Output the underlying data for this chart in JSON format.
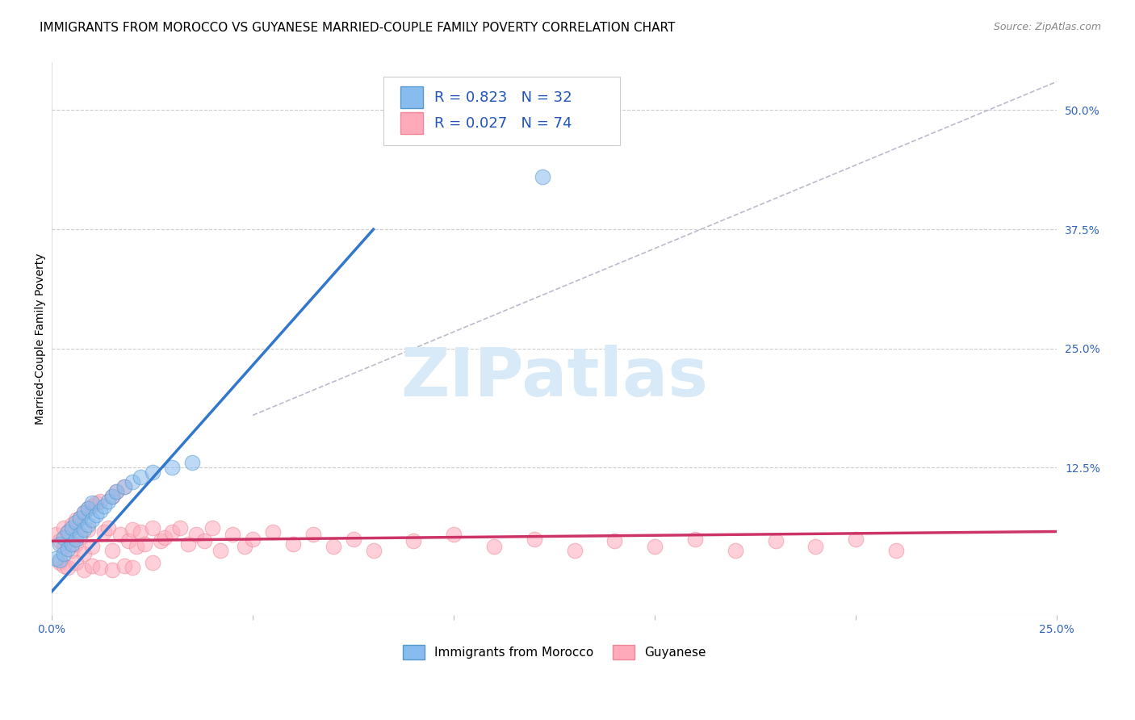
{
  "title": "IMMIGRANTS FROM MOROCCO VS GUYANESE MARRIED-COUPLE FAMILY POVERTY CORRELATION CHART",
  "source": "Source: ZipAtlas.com",
  "ylabel": "Married-Couple Family Poverty",
  "xlim": [
    0.0,
    0.25
  ],
  "ylim": [
    -0.03,
    0.55
  ],
  "xticks": [
    0.0,
    0.05,
    0.1,
    0.15,
    0.2,
    0.25
  ],
  "xtick_labels": [
    "0.0%",
    "",
    "",
    "",
    "",
    "25.0%"
  ],
  "ytick_labels_right": [
    "12.5%",
    "25.0%",
    "37.5%",
    "50.0%"
  ],
  "yticks_right": [
    0.125,
    0.25,
    0.375,
    0.5
  ],
  "morocco_color": "#88bbee",
  "morocco_edge_color": "#5599cc",
  "guyanese_color": "#ffaabb",
  "guyanese_edge_color": "#ee8899",
  "morocco_line_color": "#3377cc",
  "guyanese_line_color": "#cc3366",
  "ref_line_color": "#bbbbcc",
  "watermark_text": "ZIPatlas",
  "watermark_color": "#d8eaf8",
  "legend_morocco_R": "0.823",
  "legend_morocco_N": "32",
  "legend_guyanese_R": "0.027",
  "legend_guyanese_N": "74",
  "morocco_line_x0": 0.0,
  "morocco_line_y0": -0.005,
  "morocco_line_x1": 0.08,
  "morocco_line_y1": 0.375,
  "guyanese_line_x0": 0.0,
  "guyanese_line_y0": 0.048,
  "guyanese_line_x1": 0.25,
  "guyanese_line_y1": 0.058,
  "ref_line_x0": 0.05,
  "ref_line_y0": 0.18,
  "ref_line_x1": 0.25,
  "ref_line_y1": 0.53,
  "morocco_scatter_x": [
    0.001,
    0.002,
    0.002,
    0.003,
    0.003,
    0.004,
    0.004,
    0.005,
    0.005,
    0.006,
    0.006,
    0.007,
    0.007,
    0.008,
    0.008,
    0.009,
    0.009,
    0.01,
    0.01,
    0.011,
    0.012,
    0.013,
    0.014,
    0.015,
    0.016,
    0.018,
    0.02,
    0.022,
    0.025,
    0.03,
    0.035,
    0.122
  ],
  "morocco_scatter_y": [
    0.03,
    0.028,
    0.045,
    0.035,
    0.052,
    0.04,
    0.058,
    0.045,
    0.062,
    0.05,
    0.068,
    0.055,
    0.072,
    0.06,
    0.078,
    0.065,
    0.082,
    0.07,
    0.088,
    0.075,
    0.08,
    0.085,
    0.09,
    0.095,
    0.1,
    0.105,
    0.11,
    0.115,
    0.12,
    0.125,
    0.13,
    0.43
  ],
  "guyanese_scatter_x": [
    0.001,
    0.002,
    0.003,
    0.003,
    0.004,
    0.005,
    0.005,
    0.006,
    0.006,
    0.007,
    0.007,
    0.008,
    0.008,
    0.009,
    0.009,
    0.01,
    0.01,
    0.011,
    0.012,
    0.013,
    0.014,
    0.015,
    0.015,
    0.016,
    0.017,
    0.018,
    0.019,
    0.02,
    0.021,
    0.022,
    0.023,
    0.025,
    0.027,
    0.028,
    0.03,
    0.032,
    0.034,
    0.036,
    0.038,
    0.04,
    0.042,
    0.045,
    0.048,
    0.05,
    0.055,
    0.06,
    0.065,
    0.07,
    0.075,
    0.08,
    0.09,
    0.1,
    0.11,
    0.12,
    0.13,
    0.14,
    0.15,
    0.16,
    0.17,
    0.18,
    0.19,
    0.2,
    0.21,
    0.002,
    0.003,
    0.004,
    0.006,
    0.008,
    0.01,
    0.012,
    0.015,
    0.018,
    0.02,
    0.025
  ],
  "guyanese_scatter_y": [
    0.055,
    0.048,
    0.042,
    0.062,
    0.058,
    0.065,
    0.038,
    0.07,
    0.045,
    0.072,
    0.052,
    0.078,
    0.035,
    0.082,
    0.06,
    0.085,
    0.042,
    0.088,
    0.09,
    0.058,
    0.062,
    0.095,
    0.038,
    0.1,
    0.055,
    0.105,
    0.048,
    0.06,
    0.042,
    0.058,
    0.045,
    0.062,
    0.048,
    0.052,
    0.058,
    0.062,
    0.045,
    0.055,
    0.048,
    0.062,
    0.038,
    0.055,
    0.042,
    0.05,
    0.058,
    0.045,
    0.055,
    0.042,
    0.05,
    0.038,
    0.048,
    0.055,
    0.042,
    0.05,
    0.038,
    0.048,
    0.042,
    0.05,
    0.038,
    0.048,
    0.042,
    0.05,
    0.038,
    0.025,
    0.022,
    0.02,
    0.025,
    0.018,
    0.022,
    0.02,
    0.018,
    0.022,
    0.02,
    0.025
  ],
  "background_color": "#ffffff",
  "grid_color": "#cccccc",
  "title_fontsize": 11,
  "axis_label_fontsize": 10,
  "tick_fontsize": 10
}
